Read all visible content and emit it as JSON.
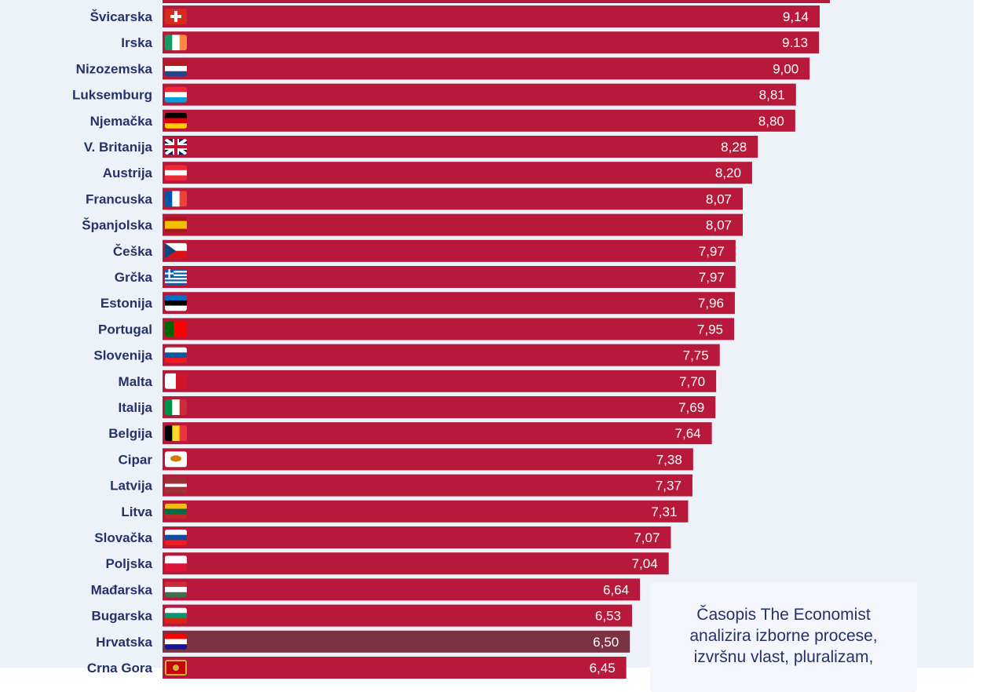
{
  "colors": {
    "bar": "#b8193a",
    "bar_highlight": "#7a3244",
    "label": "#23336a",
    "value_text": "#ffffff",
    "background": "#edf1f8"
  },
  "chart_data": {
    "type": "bar",
    "orientation": "horizontal",
    "title": "",
    "xlabel": "",
    "ylabel": "",
    "xlim": [
      0,
      10
    ],
    "grid": false,
    "legend": "none",
    "value_format": "comma-decimal",
    "categories": [
      "Švicarska",
      "Irska",
      "Nizozemska",
      "Luksemburg",
      "Njemačka",
      "V. Britanija",
      "Austrija",
      "Francuska",
      "Španjolska",
      "Češka",
      "Grčka",
      "Estonija",
      "Portugal",
      "Slovenija",
      "Malta",
      "Italija",
      "Belgija",
      "Cipar",
      "Latvija",
      "Litva",
      "Slovačka",
      "Poljska",
      "Mađarska",
      "Bugarska",
      "Hrvatska",
      "Crna Gora"
    ],
    "values": [
      9.14,
      9.13,
      9.0,
      8.81,
      8.8,
      8.28,
      8.2,
      8.07,
      8.07,
      7.97,
      7.97,
      7.96,
      7.95,
      7.75,
      7.7,
      7.69,
      7.64,
      7.38,
      7.37,
      7.31,
      7.07,
      7.04,
      6.64,
      6.53,
      6.5,
      6.45
    ],
    "value_labels": [
      "9,14",
      "9.13",
      "9,00",
      "8,81",
      "8,80",
      "8,28",
      "8,20",
      "8,07",
      "8,07",
      "7,97",
      "7,97",
      "7,96",
      "7,95",
      "7,75",
      "7,70",
      "7,69",
      "7,64",
      "7,38",
      "7,37",
      "7,31",
      "7,07",
      "7,04",
      "6,64",
      "6,53",
      "6,50",
      "6,45"
    ],
    "highlight": "Hrvatska",
    "flags": [
      "switzerland-flag",
      "ireland-flag",
      "netherlands-flag",
      "luxembourg-flag",
      "germany-flag",
      "uk-flag",
      "austria-flag",
      "france-flag",
      "spain-flag",
      "czech-flag",
      "greece-flag",
      "estonia-flag",
      "portugal-flag",
      "slovenia-flag",
      "malta-flag",
      "italy-flag",
      "belgium-flag",
      "cyprus-flag",
      "latvia-flag",
      "lithuania-flag",
      "slovakia-flag",
      "poland-flag",
      "hungary-flag",
      "bulgaria-flag",
      "croatia-flag",
      "montenegro-flag"
    ]
  },
  "note": {
    "text": "Časopis The Economist\nanalizira izborne procese,\nizvršnu vlast, pluralizam,"
  }
}
